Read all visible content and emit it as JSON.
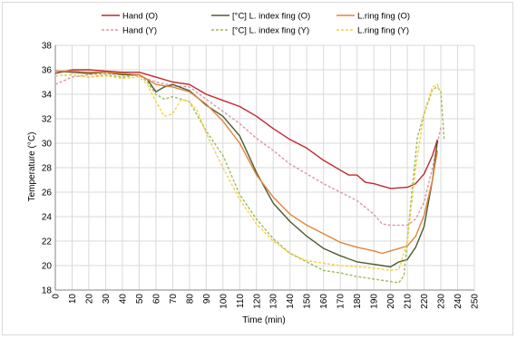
{
  "chart_data": {
    "type": "line",
    "xlabel": "Time (min)",
    "ylabel": "Temperature (°C)",
    "xlim": [
      0,
      250
    ],
    "ylim": [
      18,
      38
    ],
    "xticks": [
      0,
      10,
      20,
      30,
      40,
      50,
      60,
      70,
      80,
      90,
      100,
      110,
      120,
      130,
      140,
      150,
      160,
      170,
      180,
      190,
      200,
      210,
      220,
      230,
      240,
      250
    ],
    "yticks": [
      18,
      20,
      22,
      24,
      26,
      28,
      30,
      32,
      34,
      36,
      38
    ],
    "grid": true,
    "legend_position": "top",
    "series": [
      {
        "name": "Hand (O)",
        "color": "#c0282d",
        "dash": "solid",
        "points": [
          [
            0,
            35.7
          ],
          [
            10,
            36.0
          ],
          [
            20,
            36.0
          ],
          [
            30,
            35.9
          ],
          [
            40,
            35.8
          ],
          [
            50,
            35.8
          ],
          [
            60,
            35.4
          ],
          [
            70,
            35.0
          ],
          [
            80,
            34.8
          ],
          [
            90,
            34.0
          ],
          [
            100,
            33.5
          ],
          [
            110,
            33.0
          ],
          [
            120,
            32.2
          ],
          [
            130,
            31.2
          ],
          [
            140,
            30.3
          ],
          [
            150,
            29.6
          ],
          [
            160,
            28.6
          ],
          [
            170,
            27.8
          ],
          [
            175,
            27.4
          ],
          [
            180,
            27.4
          ],
          [
            185,
            26.8
          ],
          [
            190,
            26.7
          ],
          [
            195,
            26.5
          ],
          [
            200,
            26.3
          ],
          [
            210,
            26.4
          ],
          [
            215,
            26.7
          ],
          [
            220,
            27.5
          ],
          [
            225,
            29.0
          ],
          [
            228,
            30.3
          ]
        ]
      },
      {
        "name": "Hand (Y)",
        "color": "#d99aa5",
        "dash": "dashed",
        "points": [
          [
            0,
            34.8
          ],
          [
            10,
            35.4
          ],
          [
            20,
            35.6
          ],
          [
            30,
            35.7
          ],
          [
            40,
            35.6
          ],
          [
            50,
            35.5
          ],
          [
            60,
            35.0
          ],
          [
            70,
            34.7
          ],
          [
            80,
            34.6
          ],
          [
            90,
            33.6
          ],
          [
            100,
            32.6
          ],
          [
            110,
            31.6
          ],
          [
            120,
            30.4
          ],
          [
            130,
            29.4
          ],
          [
            140,
            28.3
          ],
          [
            150,
            27.5
          ],
          [
            160,
            26.7
          ],
          [
            170,
            26.0
          ],
          [
            180,
            25.3
          ],
          [
            190,
            24.2
          ],
          [
            195,
            23.4
          ],
          [
            200,
            23.3
          ],
          [
            210,
            23.3
          ],
          [
            215,
            23.8
          ],
          [
            220,
            25.2
          ],
          [
            225,
            28.0
          ],
          [
            230,
            31.3
          ]
        ]
      },
      {
        "name": "[°C] L. index fing (O)",
        "color": "#4e5b31",
        "dash": "solid",
        "points": [
          [
            0,
            35.9
          ],
          [
            10,
            35.8
          ],
          [
            20,
            35.7
          ],
          [
            30,
            35.8
          ],
          [
            40,
            35.6
          ],
          [
            50,
            35.6
          ],
          [
            55,
            35.2
          ],
          [
            60,
            34.2
          ],
          [
            65,
            34.6
          ],
          [
            70,
            34.8
          ],
          [
            80,
            34.3
          ],
          [
            85,
            33.7
          ],
          [
            90,
            33.1
          ],
          [
            100,
            32.2
          ],
          [
            110,
            30.6
          ],
          [
            120,
            27.6
          ],
          [
            130,
            25.1
          ],
          [
            140,
            23.6
          ],
          [
            150,
            22.4
          ],
          [
            160,
            21.4
          ],
          [
            170,
            20.8
          ],
          [
            180,
            20.3
          ],
          [
            190,
            20.1
          ],
          [
            195,
            20.0
          ],
          [
            200,
            19.9
          ],
          [
            205,
            20.3
          ],
          [
            210,
            20.5
          ],
          [
            215,
            21.5
          ],
          [
            220,
            23.2
          ],
          [
            225,
            27.0
          ],
          [
            228,
            30.2
          ]
        ]
      },
      {
        "name": "[°C] L. index fing (Y)",
        "color": "#9bbb59",
        "dash": "dashed",
        "points": [
          [
            0,
            35.5
          ],
          [
            10,
            35.6
          ],
          [
            20,
            35.4
          ],
          [
            30,
            35.6
          ],
          [
            40,
            35.4
          ],
          [
            50,
            35.6
          ],
          [
            55,
            35.0
          ],
          [
            60,
            34.0
          ],
          [
            65,
            33.6
          ],
          [
            70,
            33.8
          ],
          [
            80,
            33.4
          ],
          [
            85,
            32.2
          ],
          [
            90,
            31.0
          ],
          [
            100,
            29.0
          ],
          [
            110,
            25.8
          ],
          [
            120,
            23.8
          ],
          [
            130,
            22.2
          ],
          [
            140,
            21.0
          ],
          [
            150,
            20.3
          ],
          [
            160,
            19.6
          ],
          [
            170,
            19.4
          ],
          [
            180,
            19.1
          ],
          [
            190,
            18.9
          ],
          [
            200,
            18.7
          ],
          [
            205,
            18.6
          ],
          [
            208,
            19.2
          ],
          [
            212,
            25.0
          ],
          [
            216,
            30.5
          ],
          [
            220,
            32.4
          ],
          [
            225,
            34.4
          ],
          [
            228,
            34.6
          ],
          [
            230,
            34.2
          ],
          [
            232,
            30.2
          ]
        ]
      },
      {
        "name": "L.ring fing  (O)",
        "color": "#e0853a",
        "dash": "solid",
        "points": [
          [
            0,
            35.9
          ],
          [
            10,
            35.9
          ],
          [
            20,
            35.8
          ],
          [
            30,
            35.8
          ],
          [
            40,
            35.7
          ],
          [
            50,
            35.6
          ],
          [
            60,
            34.8
          ],
          [
            70,
            34.6
          ],
          [
            80,
            34.2
          ],
          [
            90,
            33.2
          ],
          [
            100,
            31.8
          ],
          [
            110,
            30.0
          ],
          [
            120,
            27.4
          ],
          [
            130,
            25.6
          ],
          [
            140,
            24.2
          ],
          [
            150,
            23.3
          ],
          [
            160,
            22.6
          ],
          [
            170,
            21.9
          ],
          [
            180,
            21.5
          ],
          [
            190,
            21.2
          ],
          [
            195,
            21.0
          ],
          [
            200,
            21.2
          ],
          [
            210,
            21.6
          ],
          [
            215,
            22.4
          ],
          [
            220,
            24.1
          ],
          [
            225,
            27.0
          ],
          [
            228,
            29.4
          ]
        ]
      },
      {
        "name": "L.ring fing  (Y)",
        "color": "#f5d23c",
        "dash": "dashed",
        "points": [
          [
            0,
            35.5
          ],
          [
            10,
            35.6
          ],
          [
            20,
            35.4
          ],
          [
            30,
            35.5
          ],
          [
            40,
            35.3
          ],
          [
            50,
            35.4
          ],
          [
            55,
            34.8
          ],
          [
            60,
            33.4
          ],
          [
            65,
            32.2
          ],
          [
            70,
            32.4
          ],
          [
            75,
            33.6
          ],
          [
            80,
            33.4
          ],
          [
            85,
            32.6
          ],
          [
            90,
            30.8
          ],
          [
            100,
            28.0
          ],
          [
            110,
            25.4
          ],
          [
            120,
            23.4
          ],
          [
            130,
            22.0
          ],
          [
            140,
            21.0
          ],
          [
            150,
            20.4
          ],
          [
            160,
            20.2
          ],
          [
            170,
            20.0
          ],
          [
            180,
            19.9
          ],
          [
            190,
            19.8
          ],
          [
            200,
            19.6
          ],
          [
            205,
            19.7
          ],
          [
            210,
            22.0
          ],
          [
            215,
            28.0
          ],
          [
            220,
            32.5
          ],
          [
            225,
            34.6
          ],
          [
            228,
            34.8
          ],
          [
            230,
            34.0
          ]
        ]
      }
    ]
  }
}
